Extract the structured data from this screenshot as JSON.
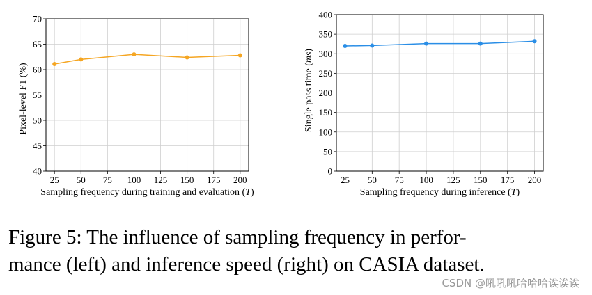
{
  "chart_data": [
    {
      "type": "line",
      "x": [
        25,
        50,
        100,
        150,
        200
      ],
      "values": [
        61.1,
        62.0,
        63.0,
        62.4,
        62.8
      ],
      "ylabel": "Pixel-level F1 (%)",
      "xlabel": "Sampling frequency during training and evaluation",
      "xlabel_var": "T",
      "xticks": [
        "25",
        "50",
        "75",
        "100",
        "125",
        "150",
        "175",
        "200"
      ],
      "yticks": [
        "40",
        "45",
        "50",
        "55",
        "60",
        "65",
        "70"
      ],
      "xlim": [
        17,
        208
      ],
      "ylim": [
        40,
        70
      ],
      "grid": true,
      "color": "#f5a623"
    },
    {
      "type": "line",
      "x": [
        25,
        50,
        100,
        150,
        200
      ],
      "values": [
        320,
        321,
        326,
        326,
        332
      ],
      "ylabel": "Single pass time",
      "ylabel_unit": "ms",
      "xlabel": "Sampling frequency during inference",
      "xlabel_var": "T",
      "xticks": [
        "25",
        "50",
        "75",
        "100",
        "125",
        "150",
        "175",
        "200"
      ],
      "yticks": [
        "0",
        "50",
        "100",
        "150",
        "200",
        "250",
        "300",
        "350",
        "400"
      ],
      "xlim": [
        17,
        208
      ],
      "ylim": [
        0,
        400
      ],
      "grid": true,
      "color": "#2a8ee6"
    }
  ],
  "caption": {
    "line1": "Figure 5:  The influence of sampling frequency in perfor-",
    "line2": "mance (left) and inference speed (right) on CASIA dataset."
  },
  "watermark": "CSDN @吼吼吼哈哈哈诶诶诶"
}
